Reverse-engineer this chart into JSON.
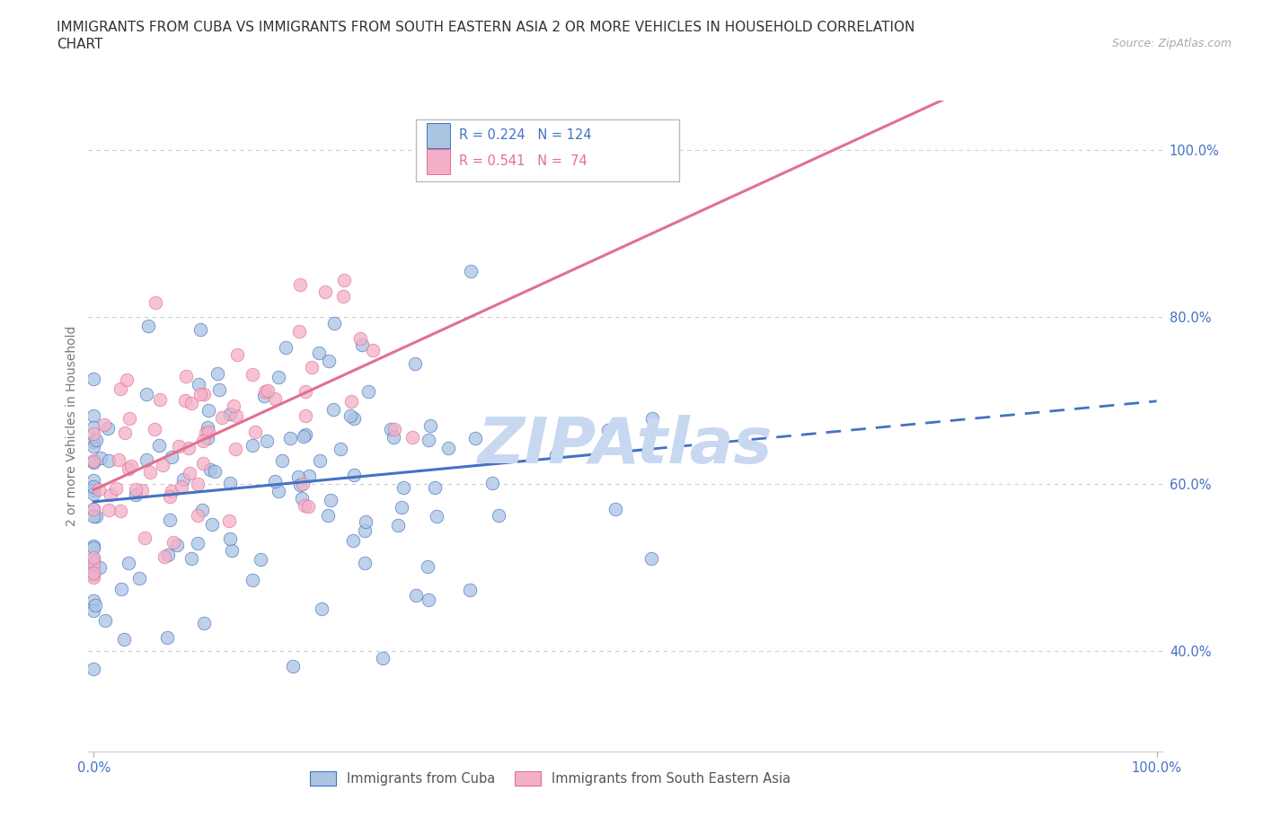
{
  "title_line1": "IMMIGRANTS FROM CUBA VS IMMIGRANTS FROM SOUTH EASTERN ASIA 2 OR MORE VEHICLES IN HOUSEHOLD CORRELATION",
  "title_line2": "CHART",
  "source_text": "Source: ZipAtlas.com",
  "ylabel": "2 or more Vehicles in Household",
  "legend_labels": [
    "Immigrants from Cuba",
    "Immigrants from South Eastern Asia"
  ],
  "R_cuba": 0.224,
  "N_cuba": 124,
  "R_sea": 0.541,
  "N_sea": 74,
  "color_cuba": "#aac4e2",
  "color_sea": "#f4afc8",
  "line_color_cuba": "#4472c4",
  "line_color_sea": "#e07090",
  "background_color": "#ffffff",
  "watermark_text": "ZIPAtlas",
  "watermark_color": "#c8d8f0",
  "ytick_color": "#4472c4",
  "xtick_color": "#4472c4",
  "grid_color": "#cccccc",
  "ylabel_color": "#777777",
  "title_color": "#333333",
  "source_color": "#aaaaaa"
}
